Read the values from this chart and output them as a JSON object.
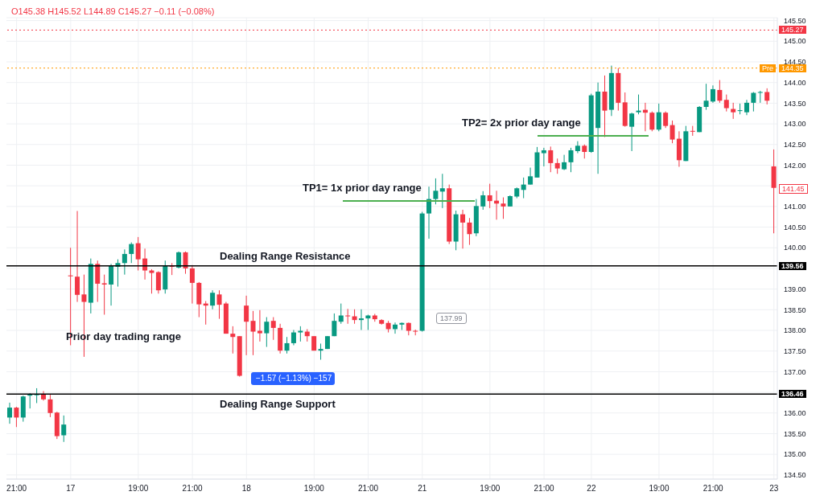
{
  "chart_data": {
    "type": "candlestick",
    "categories": [
      null,
      "21:00",
      null,
      null,
      null,
      null,
      null,
      null,
      null,
      "17",
      null,
      null,
      null,
      null,
      null,
      null,
      null,
      null,
      null,
      "19:00",
      null,
      null,
      null,
      null,
      null,
      null,
      null,
      "21:00",
      null,
      null,
      null,
      null,
      null,
      null,
      null,
      "18",
      null,
      null,
      null,
      null,
      null,
      null,
      null,
      null,
      null,
      "19:00",
      null,
      null,
      null,
      null,
      null,
      null,
      null,
      "21:00",
      null,
      null,
      null,
      null,
      null,
      null,
      null,
      "21",
      null,
      null,
      null,
      null,
      null,
      null,
      null,
      null,
      null,
      "19:00",
      null,
      null,
      null,
      null,
      null,
      null,
      null,
      "21:00",
      null,
      null,
      null,
      null,
      null,
      null,
      "22",
      null,
      null,
      null,
      null,
      null,
      null,
      null,
      null,
      null,
      "19:00",
      null,
      null,
      null,
      null,
      null,
      null,
      null,
      "21:00",
      null,
      null,
      null,
      null,
      null,
      null,
      null,
      null,
      "23"
    ],
    "ohlc": [
      [
        135.89,
        136.25,
        135.74,
        136.13
      ],
      [
        136.13,
        136.15,
        135.66,
        135.89
      ],
      [
        135.89,
        136.42,
        135.79,
        136.4
      ],
      [
        136.42,
        136.48,
        136.11,
        136.45
      ],
      [
        136.43,
        136.6,
        136.24,
        136.46
      ],
      [
        136.46,
        136.53,
        136.3,
        136.33
      ],
      [
        136.33,
        136.44,
        135.9,
        136.0
      ],
      [
        136.01,
        136.03,
        135.37,
        135.44
      ],
      [
        135.46,
        135.94,
        135.3,
        135.72
      ],
      [
        139.33,
        140.0,
        137.64,
        139.31
      ],
      [
        139.3,
        140.89,
        138.69,
        138.86
      ],
      [
        138.87,
        139.35,
        137.36,
        138.69
      ],
      [
        138.67,
        139.74,
        138.41,
        139.61
      ],
      [
        139.61,
        139.69,
        138.69,
        139.13
      ],
      [
        139.14,
        139.35,
        138.38,
        139.11
      ],
      [
        139.11,
        139.61,
        138.6,
        139.56
      ],
      [
        139.54,
        139.72,
        139.06,
        139.63
      ],
      [
        139.63,
        139.96,
        139.35,
        139.85
      ],
      [
        139.85,
        140.13,
        139.63,
        140.09
      ],
      [
        140.11,
        140.26,
        139.45,
        139.72
      ],
      [
        139.74,
        139.98,
        139.23,
        139.45
      ],
      [
        139.45,
        139.48,
        138.89,
        139.39
      ],
      [
        139.41,
        139.43,
        138.89,
        138.97
      ],
      [
        138.99,
        139.69,
        138.89,
        139.56
      ],
      [
        139.56,
        139.63,
        139.34,
        139.54
      ],
      [
        139.52,
        139.91,
        139.5,
        139.89
      ],
      [
        139.89,
        139.91,
        139.37,
        139.5
      ],
      [
        139.5,
        139.58,
        138.65,
        139.15
      ],
      [
        139.15,
        139.17,
        138.32,
        138.63
      ],
      [
        138.65,
        138.71,
        138.14,
        138.6
      ],
      [
        138.6,
        138.97,
        138.51,
        138.91
      ],
      [
        138.87,
        138.97,
        138.28,
        138.62
      ],
      [
        138.65,
        138.69,
        137.92,
        137.92
      ],
      [
        137.92,
        138.1,
        137.44,
        137.84
      ],
      [
        137.86,
        137.86,
        136.88,
        136.9
      ],
      [
        138.6,
        138.84,
        137.4,
        138.21
      ],
      [
        138.23,
        138.47,
        137.4,
        137.97
      ],
      [
        137.99,
        138.49,
        137.73,
        137.93
      ],
      [
        137.93,
        138.32,
        137.6,
        138.21
      ],
      [
        138.23,
        138.32,
        137.77,
        138.06
      ],
      [
        138.06,
        138.16,
        137.44,
        137.51
      ],
      [
        137.51,
        137.84,
        137.44,
        137.69
      ],
      [
        137.69,
        138.01,
        137.64,
        137.95
      ],
      [
        137.95,
        138.1,
        137.73,
        137.99
      ],
      [
        137.97,
        138.03,
        137.73,
        137.86
      ],
      [
        137.86,
        137.86,
        137.51,
        137.51
      ],
      [
        137.51,
        137.68,
        137.29,
        137.55
      ],
      [
        137.55,
        137.86,
        137.55,
        137.86
      ],
      [
        137.86,
        138.41,
        137.86,
        138.23
      ],
      [
        138.21,
        138.65,
        138.16,
        138.36
      ],
      [
        138.36,
        138.52,
        138.16,
        138.34
      ],
      [
        138.34,
        138.51,
        138.16,
        138.25
      ],
      [
        138.25,
        138.51,
        138.01,
        138.29
      ],
      [
        138.29,
        138.38,
        138.01,
        138.36
      ],
      [
        138.36,
        138.4,
        138.21,
        138.27
      ],
      [
        138.25,
        138.27,
        138.14,
        138.16
      ],
      [
        138.18,
        138.23,
        137.95,
        138.03
      ],
      [
        138.03,
        138.19,
        137.92,
        138.14
      ],
      [
        138.14,
        138.19,
        138.01,
        138.18
      ],
      [
        138.18,
        138.19,
        137.88,
        137.99
      ],
      [
        137.99,
        138.02,
        137.88,
        137.97
      ],
      [
        137.99,
        140.87,
        137.97,
        140.83
      ],
      [
        140.83,
        141.48,
        140.22,
        141.18
      ],
      [
        141.18,
        141.68,
        141.05,
        141.38
      ],
      [
        141.36,
        141.79,
        140.96,
        141.44
      ],
      [
        141.44,
        141.53,
        140.09,
        140.15
      ],
      [
        140.15,
        140.9,
        139.94,
        140.81
      ],
      [
        140.81,
        140.92,
        139.98,
        140.61
      ],
      [
        140.61,
        140.72,
        140.07,
        140.33
      ],
      [
        140.35,
        141.18,
        140.28,
        141.01
      ],
      [
        141.0,
        141.37,
        140.92,
        141.27
      ],
      [
        141.27,
        141.55,
        140.96,
        141.13
      ],
      [
        141.14,
        141.38,
        140.68,
        141.07
      ],
      [
        141.07,
        141.22,
        140.7,
        141.0
      ],
      [
        141.0,
        141.27,
        141.0,
        141.25
      ],
      [
        141.24,
        141.46,
        141.2,
        141.44
      ],
      [
        141.4,
        141.7,
        141.2,
        141.53
      ],
      [
        141.53,
        141.94,
        141.53,
        141.73
      ],
      [
        141.7,
        142.44,
        141.7,
        142.31
      ],
      [
        142.29,
        142.42,
        141.97,
        142.36
      ],
      [
        142.36,
        142.45,
        141.83,
        142.05
      ],
      [
        142.05,
        142.16,
        141.79,
        141.92
      ],
      [
        141.9,
        142.25,
        141.88,
        142.07
      ],
      [
        142.07,
        142.42,
        141.83,
        142.36
      ],
      [
        142.34,
        142.58,
        142.29,
        142.47
      ],
      [
        142.47,
        142.5,
        142.16,
        142.32
      ],
      [
        142.32,
        143.73,
        142.3,
        143.69
      ],
      [
        142.9,
        144.0,
        141.79,
        143.78
      ],
      [
        143.78,
        144.17,
        142.68,
        143.32
      ],
      [
        143.34,
        144.41,
        143.19,
        144.23
      ],
      [
        144.23,
        144.35,
        143.32,
        143.51
      ],
      [
        143.52,
        143.76,
        142.93,
        142.95
      ],
      [
        142.93,
        143.27,
        142.34,
        143.25
      ],
      [
        143.28,
        143.71,
        143.23,
        143.32
      ],
      [
        143.34,
        143.51,
        142.82,
        143.27
      ],
      [
        143.27,
        143.3,
        142.82,
        142.86
      ],
      [
        142.86,
        143.49,
        142.82,
        143.28
      ],
      [
        143.27,
        143.3,
        142.9,
        142.95
      ],
      [
        142.97,
        143.08,
        142.53,
        142.62
      ],
      [
        142.64,
        142.82,
        141.96,
        142.12
      ],
      [
        142.1,
        142.95,
        142.1,
        142.82
      ],
      [
        142.83,
        142.95,
        142.71,
        142.81
      ],
      [
        142.8,
        143.43,
        142.8,
        143.41
      ],
      [
        143.41,
        143.97,
        143.34,
        143.56
      ],
      [
        143.54,
        143.93,
        143.51,
        143.84
      ],
      [
        143.82,
        144.06,
        143.51,
        143.56
      ],
      [
        143.58,
        143.71,
        143.3,
        143.38
      ],
      [
        143.36,
        143.51,
        143.12,
        143.28
      ],
      [
        143.31,
        143.49,
        143.23,
        143.33
      ],
      [
        143.28,
        143.58,
        143.21,
        143.51
      ],
      [
        143.51,
        143.77,
        143.3,
        143.75
      ],
      [
        143.75,
        143.8,
        143.51,
        143.77
      ],
      [
        143.77,
        143.86,
        143.47,
        143.56
      ],
      [
        141.97,
        142.38,
        140.35,
        141.45
      ]
    ],
    "ylim": [
      134.4,
      145.57
    ],
    "yticks": [
      {
        "value": 134.5,
        "label": "134.50"
      },
      {
        "value": 135,
        "label": "135.00"
      },
      {
        "value": 135.5,
        "label": "135.50"
      },
      {
        "value": 136,
        "label": "136.00"
      },
      {
        "value": 136.5,
        "label": null
      },
      {
        "value": 137,
        "label": "137.00"
      },
      {
        "value": 137.5,
        "label": "137.50"
      },
      {
        "value": 138,
        "label": "138.00"
      },
      {
        "value": 138.5,
        "label": "138.50"
      },
      {
        "value": 139,
        "label": "139.00"
      },
      {
        "value": 139.5,
        "label": null
      },
      {
        "value": 140,
        "label": "140.00"
      },
      {
        "value": 140.5,
        "label": "140.50"
      },
      {
        "value": 141,
        "label": "141.00"
      },
      {
        "value": 141.5,
        "label": null
      },
      {
        "value": 142,
        "label": "142.00"
      },
      {
        "value": 142.5,
        "label": "142.50"
      },
      {
        "value": 143,
        "label": "143.00"
      },
      {
        "value": 143.5,
        "label": "143.50"
      },
      {
        "value": 144,
        "label": "144.00"
      },
      {
        "value": 144.5,
        "label": "144.50"
      },
      {
        "value": 145,
        "label": "145.00"
      },
      {
        "value": 145.5,
        "label": "145.50"
      }
    ],
    "grid": true,
    "ref_lines": [
      {
        "axis": "y",
        "value": 139.56,
        "label": "Dealing Range Resistance",
        "color": "#000000",
        "line_style": "solid"
      },
      {
        "axis": "y",
        "value": 136.46,
        "label": "Dealing Range Support",
        "color": "#000000",
        "line_style": "solid"
      },
      {
        "axis": "y",
        "value": 145.27,
        "color": "#f23645",
        "line_style": "dotted"
      },
      {
        "axis": "y",
        "value": 144.35,
        "label": "Pre",
        "color": "#ff9800",
        "line_style": "dotted"
      }
    ],
    "annotations": [
      "O145.38 H145.52 L144.89 C145.27 −0.11 (−0.08%)",
      "Prior day trading range",
      "TP1= 1x prior day range",
      "TP2= 2x prior day range",
      "−1.57 (−1.13%) −157",
      "137.99",
      {
        "text": "141.45",
        "y": 141.45
      },
      "145.27",
      "144.35",
      "139.56",
      "136.46"
    ]
  }
}
